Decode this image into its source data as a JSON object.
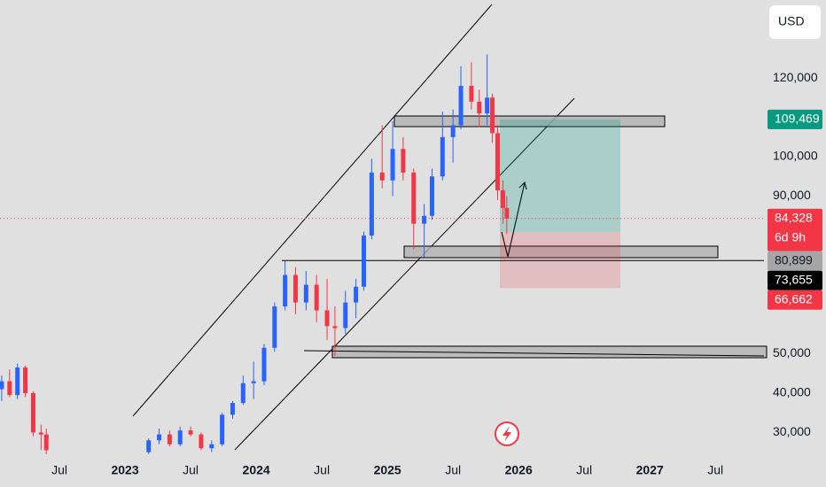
{
  "chart_data": {
    "type": "candlestick",
    "currency": "USD",
    "x": [
      2022.06,
      2022.12,
      2022.18,
      2022.24,
      2022.3,
      2022.36,
      2022.4,
      2023.18,
      2023.26,
      2023.34,
      2023.42,
      2023.5,
      2023.58,
      2023.66,
      2023.74,
      2023.82,
      2023.9,
      2023.98,
      2024.06,
      2024.14,
      2024.22,
      2024.3,
      2024.38,
      2024.46,
      2024.54,
      2024.6,
      2024.68,
      2024.76,
      2024.82,
      2024.88,
      2024.96,
      2025.04,
      2025.12,
      2025.2,
      2025.28,
      2025.34,
      2025.42,
      2025.5,
      2025.56,
      2025.64,
      2025.7,
      2025.76,
      2025.8,
      2025.84,
      2025.88,
      2025.91
    ],
    "open": [
      41000,
      43000,
      39500,
      46500,
      40000,
      30000,
      29500,
      25000,
      28000,
      29500,
      27000,
      30500,
      29500,
      26000,
      27000,
      34500,
      37500,
      42500,
      43000,
      51500,
      62000,
      70000,
      63000,
      67500,
      61000,
      57000,
      56500,
      63000,
      67000,
      80000,
      96000,
      94000,
      102000,
      96000,
      83000,
      85000,
      95000,
      105000,
      108000,
      118000,
      114000,
      111000,
      115000,
      106000,
      91500,
      87000
    ],
    "high": [
      44500,
      46000,
      47500,
      47000,
      40500,
      32000,
      31000,
      28500,
      31000,
      30500,
      31500,
      31500,
      30000,
      28000,
      35000,
      38000,
      44500,
      48000,
      52500,
      63000,
      73500,
      72000,
      71000,
      70000,
      69000,
      62000,
      66000,
      69000,
      81000,
      99500,
      108000,
      109000,
      105000,
      97000,
      88000,
      97000,
      111500,
      112000,
      123000,
      124000,
      117000,
      126000,
      116000,
      108000,
      94000,
      90000
    ],
    "low": [
      38000,
      39000,
      38500,
      39000,
      29000,
      25500,
      24500,
      24500,
      27000,
      26500,
      26500,
      29000,
      25500,
      25000,
      26500,
      33500,
      37000,
      38500,
      42000,
      50500,
      61000,
      60000,
      61000,
      58000,
      53500,
      49500,
      55000,
      59000,
      66000,
      79000,
      92000,
      90000,
      94000,
      76500,
      74500,
      84000,
      94000,
      98500,
      107000,
      112000,
      107500,
      108000,
      103500,
      89000,
      83000,
      80500
    ],
    "close": [
      43000,
      39500,
      46500,
      40000,
      30000,
      29500,
      25500,
      28000,
      29500,
      27000,
      30500,
      29500,
      26000,
      27000,
      34500,
      37500,
      42500,
      43000,
      51500,
      62000,
      70000,
      63000,
      67500,
      61000,
      57000,
      56500,
      63000,
      67000,
      80000,
      96000,
      94000,
      102000,
      96000,
      83000,
      85000,
      95000,
      105000,
      108000,
      118000,
      114000,
      111000,
      115000,
      106000,
      91500,
      87000,
      84328
    ],
    "up_color": "#2962ff",
    "down_color": "#f23645",
    "xlim": [
      2022.047,
      2027.87
    ],
    "xticks": [
      {
        "value": 2022.5,
        "label": "Jul"
      },
      {
        "value": 2023,
        "label": "2023"
      },
      {
        "value": 2023.5,
        "label": "Jul"
      },
      {
        "value": 2024,
        "label": "2024"
      },
      {
        "value": 2024.5,
        "label": "Jul"
      },
      {
        "value": 2025,
        "label": "2025"
      },
      {
        "value": 2025.5,
        "label": "Jul"
      },
      {
        "value": 2026,
        "label": "2026"
      },
      {
        "value": 2026.5,
        "label": "Jul"
      },
      {
        "value": 2027,
        "label": "2027"
      },
      {
        "value": 2027.5,
        "label": "Jul"
      }
    ],
    "ylim": [
      22900,
      139800
    ],
    "yticks": [
      {
        "value": 120000,
        "label": "120,000"
      },
      {
        "value": 100000,
        "label": "100,000"
      },
      {
        "value": 90000,
        "label": "90,000"
      },
      {
        "value": 50000,
        "label": "50,000"
      },
      {
        "value": 40000,
        "label": "40,000"
      },
      {
        "value": 30000,
        "label": "30,000"
      }
    ],
    "price_labels": [
      {
        "value": 109469,
        "label": "109,469",
        "color": "#089981",
        "text_color": "#ffffff"
      },
      {
        "value": 84328,
        "label": "84,328",
        "sublabel": "6d 9h",
        "color": "#f23645",
        "text_color": "#ffffff",
        "line": "dotted"
      },
      {
        "value": 80899,
        "label": "80,899",
        "color": "#a6a6a6",
        "text_color": "#131722"
      },
      {
        "value": 73655,
        "label": "73,655",
        "color": "#000000",
        "text_color": "#ffffff",
        "line": "solid"
      },
      {
        "value": 66662,
        "label": "66,662",
        "color": "#f23645",
        "text_color": "#ffffff"
      }
    ]
  }
}
